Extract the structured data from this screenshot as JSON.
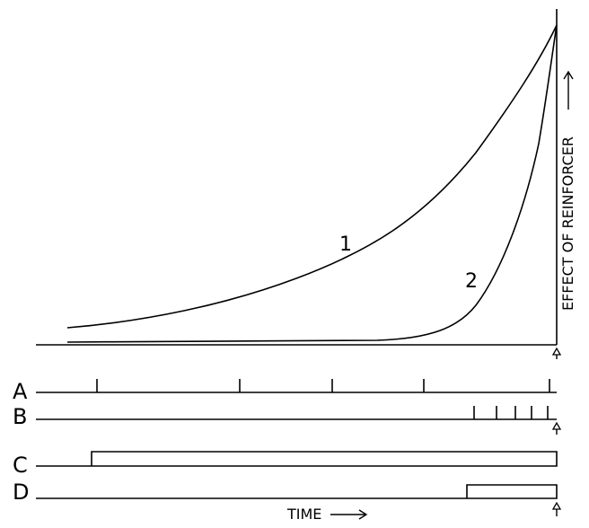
{
  "diagram": {
    "axis_label": "EFFECT OF REINFORCER",
    "curves": [
      {
        "id": "curve-1",
        "label": "1"
      },
      {
        "id": "curve-2",
        "label": "2"
      }
    ],
    "rows": [
      {
        "id": "row-a",
        "label": "A",
        "kind": "ticks",
        "events": 5
      },
      {
        "id": "row-b",
        "label": "B",
        "kind": "ticks",
        "events": 5
      },
      {
        "id": "row-c",
        "label": "C",
        "kind": "step"
      },
      {
        "id": "row-d",
        "label": "D",
        "kind": "step"
      }
    ],
    "time_label": "TIME",
    "colors": {
      "ink": "#000000",
      "background": "#ffffff"
    }
  }
}
